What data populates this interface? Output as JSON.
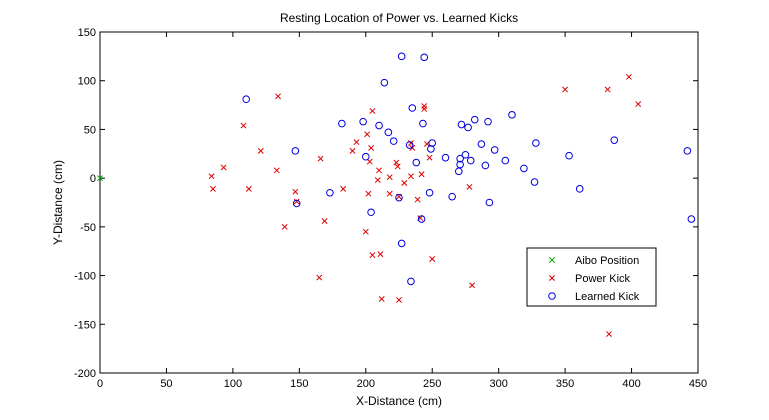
{
  "chart_data": {
    "type": "scatter",
    "title": "Resting Location of Power vs. Learned Kicks",
    "xlabel": "X-Distance (cm)",
    "ylabel": "Y-Distance (cm)",
    "xlim": [
      0,
      450
    ],
    "ylim": [
      -200,
      150
    ],
    "xticks": [
      0,
      50,
      100,
      150,
      200,
      250,
      300,
      350,
      400,
      450
    ],
    "yticks": [
      -200,
      -150,
      -100,
      -50,
      0,
      50,
      100,
      150
    ],
    "grid": false,
    "legend_position": "lower-right",
    "series": [
      {
        "name": "Aibo Position",
        "marker": "x",
        "color": "#00aa00",
        "points": [
          [
            0,
            0
          ]
        ]
      },
      {
        "name": "Power Kick",
        "marker": "x",
        "color": "#dd0000",
        "points": [
          [
            84,
            2
          ],
          [
            85,
            -11
          ],
          [
            93,
            11
          ],
          [
            108,
            54
          ],
          [
            112,
            -11
          ],
          [
            121,
            28
          ],
          [
            133,
            8
          ],
          [
            134,
            84
          ],
          [
            139,
            -50
          ],
          [
            147,
            -14
          ],
          [
            148,
            -24
          ],
          [
            165,
            -102
          ],
          [
            166,
            20
          ],
          [
            169,
            -44
          ],
          [
            183,
            -11
          ],
          [
            190,
            28
          ],
          [
            193,
            37
          ],
          [
            200,
            -55
          ],
          [
            201,
            45
          ],
          [
            202,
            -16
          ],
          [
            203,
            17
          ],
          [
            204,
            31
          ],
          [
            205,
            -79
          ],
          [
            205,
            69
          ],
          [
            209,
            -2
          ],
          [
            210,
            8
          ],
          [
            211,
            -78
          ],
          [
            212,
            -124
          ],
          [
            218,
            1
          ],
          [
            218,
            -16
          ],
          [
            223,
            16
          ],
          [
            224,
            12
          ],
          [
            225,
            -19
          ],
          [
            225,
            -125
          ],
          [
            229,
            -5
          ],
          [
            234,
            2
          ],
          [
            234,
            36
          ],
          [
            235,
            31
          ],
          [
            239,
            -22
          ],
          [
            241,
            -41
          ],
          [
            242,
            4
          ],
          [
            244,
            71
          ],
          [
            244,
            74
          ],
          [
            246,
            35
          ],
          [
            248,
            21
          ],
          [
            250,
            -83
          ],
          [
            278,
            -9
          ],
          [
            280,
            -110
          ],
          [
            350,
            91
          ],
          [
            382,
            91
          ],
          [
            383,
            -160
          ],
          [
            398,
            104
          ],
          [
            405,
            76
          ]
        ]
      },
      {
        "name": "Learned Kick",
        "marker": "o",
        "color": "#0000dd",
        "points": [
          [
            110,
            81
          ],
          [
            147,
            28
          ],
          [
            148,
            -26
          ],
          [
            173,
            -15
          ],
          [
            182,
            56
          ],
          [
            198,
            58
          ],
          [
            200,
            22
          ],
          [
            204,
            -35
          ],
          [
            210,
            54
          ],
          [
            214,
            98
          ],
          [
            217,
            47
          ],
          [
            221,
            38
          ],
          [
            225,
            -20
          ],
          [
            227,
            125
          ],
          [
            227,
            -67
          ],
          [
            233,
            34
          ],
          [
            234,
            -106
          ],
          [
            235,
            72
          ],
          [
            238,
            16
          ],
          [
            242,
            -42
          ],
          [
            243,
            56
          ],
          [
            244,
            124
          ],
          [
            248,
            -15
          ],
          [
            249,
            30
          ],
          [
            250,
            36
          ],
          [
            260,
            21
          ],
          [
            265,
            -19
          ],
          [
            270,
            7
          ],
          [
            271,
            14
          ],
          [
            271,
            20
          ],
          [
            272,
            55
          ],
          [
            275,
            24
          ],
          [
            277,
            52
          ],
          [
            279,
            18
          ],
          [
            282,
            60
          ],
          [
            287,
            35
          ],
          [
            290,
            13
          ],
          [
            292,
            58
          ],
          [
            293,
            -25
          ],
          [
            297,
            29
          ],
          [
            305,
            18
          ],
          [
            310,
            65
          ],
          [
            319,
            10
          ],
          [
            327,
            -4
          ],
          [
            328,
            36
          ],
          [
            353,
            23
          ],
          [
            361,
            -11
          ],
          [
            387,
            39
          ],
          [
            442,
            28
          ],
          [
            445,
            -42
          ]
        ]
      }
    ]
  }
}
